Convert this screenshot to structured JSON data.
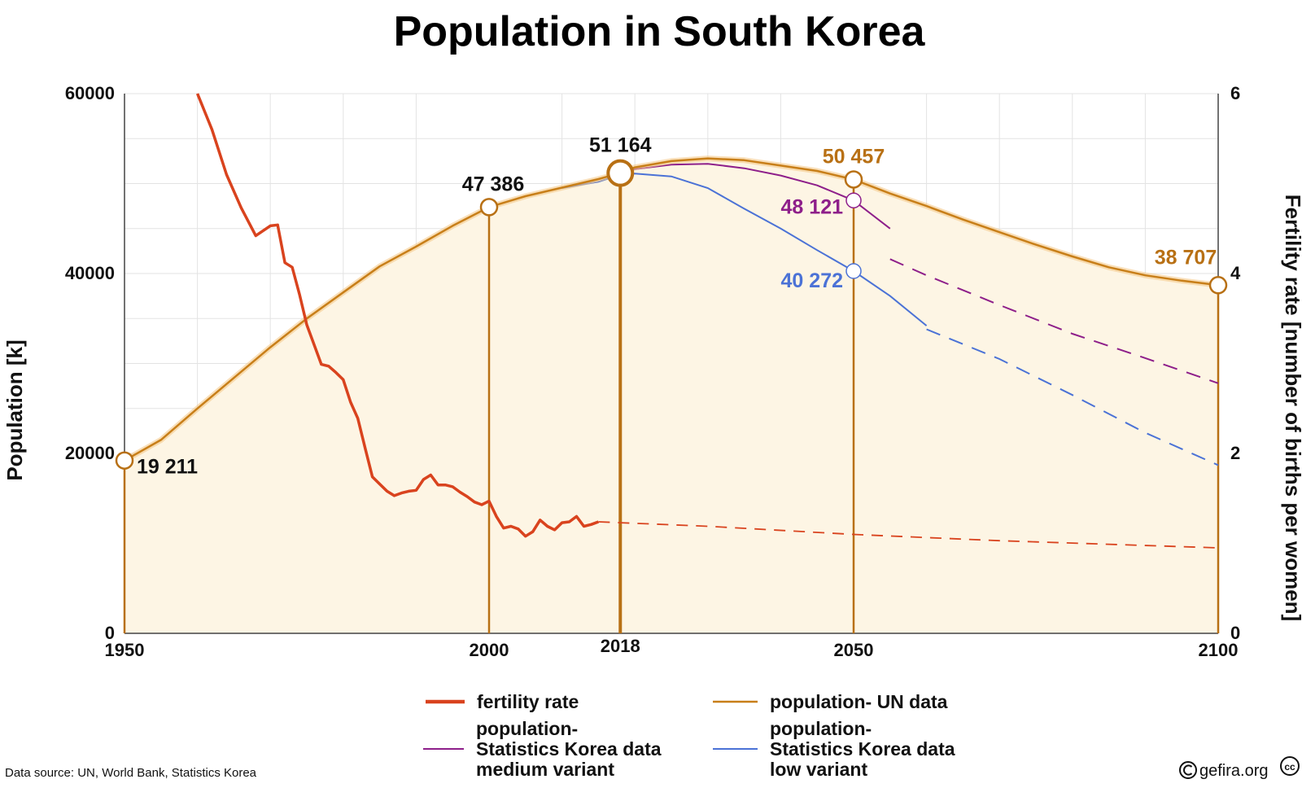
{
  "title": "Population in South Korea",
  "source": "Data source: UN, World Bank, Statistics Korea",
  "brand": "gefira.org",
  "cc_mark": "cc",
  "colors": {
    "fertility": "#d9431e",
    "un": "#c87f19",
    "medium": "#8e1f8a",
    "low": "#4b72d6",
    "area": "#fdf5e4",
    "marker": "#b87014"
  },
  "chart_data": {
    "type": "line",
    "title": "Population in South Korea",
    "xlabel": "",
    "ylabel": "Population [k]",
    "y2label": "Fertility rate [number of births per women]",
    "xlim": [
      1950,
      2100
    ],
    "ylim": [
      0,
      60000
    ],
    "y2lim": [
      0,
      6
    ],
    "x_ticks": [
      "1950",
      "2000",
      "2050",
      "2100"
    ],
    "x_highlight_tick": "2018",
    "y_ticks": [
      "0",
      "20000",
      "40000",
      "60000"
    ],
    "y2_ticks": [
      "0",
      "2",
      "4",
      "6"
    ],
    "series": [
      {
        "key": "un",
        "name": "population- UN data",
        "axis": "left",
        "x": [
          1950,
          1955,
          1960,
          1965,
          1970,
          1975,
          1980,
          1985,
          1990,
          1995,
          2000,
          2005,
          2010,
          2015,
          2018,
          2020,
          2025,
          2030,
          2035,
          2040,
          2045,
          2050,
          2055,
          2060,
          2065,
          2070,
          2075,
          2080,
          2085,
          2090,
          2095,
          2100
        ],
        "y": [
          19211,
          21500,
          25000,
          28400,
          31800,
          35000,
          37900,
          40800,
          43000,
          45300,
          47386,
          48600,
          49550,
          50500,
          51164,
          51800,
          52500,
          52800,
          52600,
          52000,
          51400,
          50457,
          48900,
          47500,
          46000,
          44600,
          43200,
          41900,
          40700,
          39800,
          39200,
          38707
        ]
      },
      {
        "key": "medium",
        "name": "population- Statistics Korea data medium variant",
        "axis": "left",
        "x": [
          2018,
          2020,
          2025,
          2030,
          2035,
          2040,
          2045,
          2050,
          2055
        ],
        "y": [
          51164,
          51600,
          52100,
          52200,
          51700,
          50900,
          49800,
          48121,
          45000
        ],
        "projection_x": [
          2055,
          2060,
          2070,
          2080,
          2090,
          2100
        ],
        "projection_y": [
          41600,
          39800,
          36500,
          33300,
          30600,
          27800
        ]
      },
      {
        "key": "low",
        "name": "population- Statistics Korea data low variant",
        "axis": "left",
        "x": [
          2010,
          2015,
          2018,
          2020,
          2025,
          2030,
          2035,
          2040,
          2045,
          2050,
          2055,
          2060
        ],
        "y": [
          49500,
          50200,
          51000,
          51100,
          50800,
          49500,
          47200,
          45000,
          42600,
          40272,
          37500,
          34200
        ],
        "projection_x": [
          2060,
          2070,
          2080,
          2090,
          2100
        ],
        "projection_y": [
          33800,
          30500,
          26500,
          22300,
          18700
        ]
      },
      {
        "key": "fertility",
        "name": "fertility rate",
        "axis": "right",
        "x": [
          1960,
          1962,
          1964,
          1966,
          1968,
          1970,
          1971,
          1972,
          1973,
          1974,
          1975,
          1977,
          1978,
          1979,
          1980,
          1981,
          1982,
          1983,
          1984,
          1985,
          1986,
          1987,
          1988,
          1989,
          1990,
          1991,
          1992,
          1993,
          1994,
          1995,
          1996,
          1997,
          1998,
          1999,
          2000,
          2001,
          2002,
          2003,
          2004,
          2005,
          2006,
          2007,
          2008,
          2009,
          2010,
          2011,
          2012,
          2013,
          2014,
          2015
        ],
        "y": [
          6.0,
          5.6,
          5.1,
          4.73,
          4.42,
          4.53,
          4.54,
          4.12,
          4.07,
          3.77,
          3.43,
          2.99,
          2.97,
          2.9,
          2.82,
          2.57,
          2.39,
          2.06,
          1.74,
          1.66,
          1.58,
          1.53,
          1.56,
          1.58,
          1.59,
          1.71,
          1.76,
          1.65,
          1.65,
          1.63,
          1.57,
          1.52,
          1.46,
          1.43,
          1.47,
          1.3,
          1.17,
          1.19,
          1.16,
          1.08,
          1.13,
          1.26,
          1.19,
          1.15,
          1.23,
          1.24,
          1.3,
          1.19,
          1.21,
          1.24
        ],
        "projection_x": [
          2015,
          2030,
          2050,
          2070,
          2100
        ],
        "projection_y": [
          1.24,
          1.19,
          1.1,
          1.03,
          0.95
        ]
      }
    ],
    "annotations": [
      {
        "label": "19 211",
        "x": 1950,
        "y": 19211,
        "color": "#111111"
      },
      {
        "label": "47 386",
        "x": 2000,
        "y": 47386,
        "color": "#111111"
      },
      {
        "label": "51 164",
        "x": 2018,
        "y": 51164,
        "color": "#111111"
      },
      {
        "label": "50 457",
        "x": 2050,
        "y": 50457,
        "color": "#b87014"
      },
      {
        "label": "48 121",
        "x": 2050,
        "y": 48121,
        "color": "#8e1f8a"
      },
      {
        "label": "40 272",
        "x": 2050,
        "y": 40272,
        "color": "#4b72d6"
      },
      {
        "label": "38 707",
        "x": 2100,
        "y": 38707,
        "color": "#b87014"
      }
    ],
    "marker_years": [
      1950,
      2000,
      2018,
      2050,
      2100
    ],
    "legend": [
      {
        "key": "fertility",
        "lines": [
          "fertility rate"
        ]
      },
      {
        "key": "un",
        "lines": [
          "population- UN data"
        ]
      },
      {
        "key": "medium",
        "lines": [
          "population-",
          "Statistics Korea data",
          "medium variant"
        ]
      },
      {
        "key": "low",
        "lines": [
          "population-",
          "Statistics Korea data",
          "low variant"
        ]
      }
    ]
  }
}
